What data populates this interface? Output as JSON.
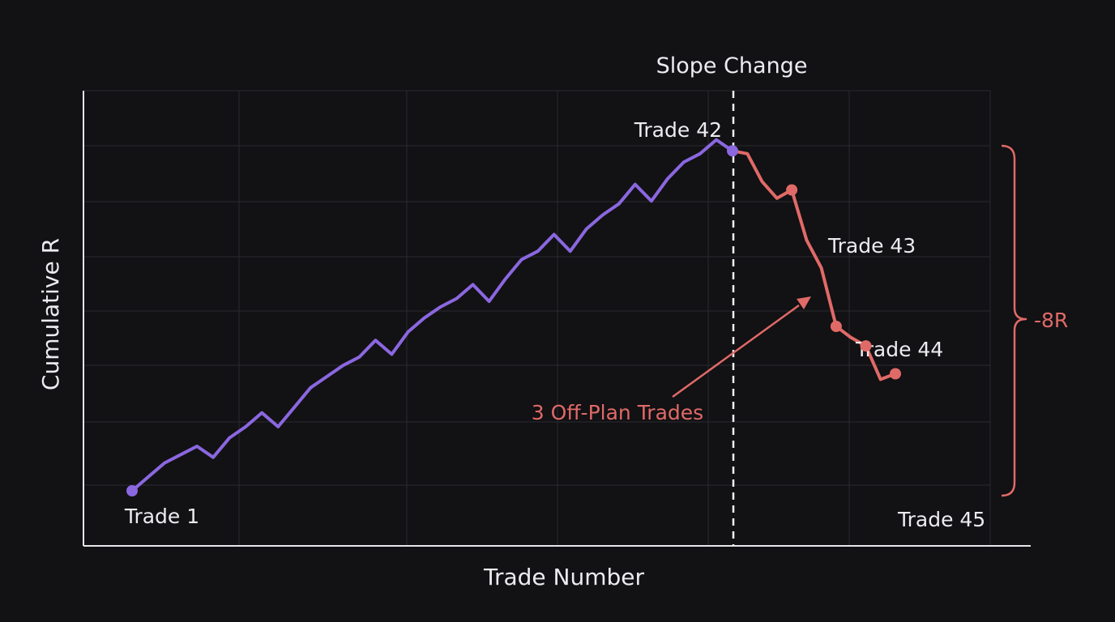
{
  "chart_data": {
    "type": "line",
    "title": "",
    "xlabel": "Trade Number",
    "ylabel": "Cumulative R",
    "grid": true,
    "colors": {
      "background": "#121114",
      "grid": "#2b2a2f",
      "axis": "#e6e6ea",
      "plan_series": "#8b67e0",
      "offplan_series": "#e06a67",
      "text": "#ececf0"
    },
    "series": [
      {
        "values": [
          0.0,
          0.5,
          1.0,
          1.3,
          1.6,
          1.2,
          1.9,
          2.3,
          2.8,
          2.3,
          3.0,
          3.7,
          4.1,
          4.5,
          4.8,
          5.4,
          4.9,
          5.7,
          6.2,
          6.6,
          6.9,
          7.4,
          6.8,
          7.6,
          8.3,
          8.6,
          9.2,
          8.6,
          9.4,
          9.9,
          10.3,
          11.0,
          10.4,
          11.2,
          11.8,
          12.1,
          12.6,
          12.2
        ]
      },
      {
        "values": [
          12.2,
          12.1,
          11.1,
          10.5,
          10.8,
          9.0,
          8.0,
          5.9,
          5.5,
          5.2,
          4.0,
          4.2
        ]
      }
    ],
    "markers": [
      {
        "label": "Trade 1",
        "kind": "plan"
      },
      {
        "label": "Trade 42",
        "kind": "plan"
      },
      {
        "label": "Trade 43",
        "kind": "offplan"
      },
      {
        "label": "Trade 44",
        "kind": "offplan"
      },
      {
        "label": "",
        "kind": "offplan"
      },
      {
        "label": "Trade 45",
        "kind": "offplan"
      }
    ],
    "annotations": {
      "slope_change": "Slope Change",
      "off_plan": "3 Off-Plan Trades",
      "drawdown": "-8R"
    }
  }
}
